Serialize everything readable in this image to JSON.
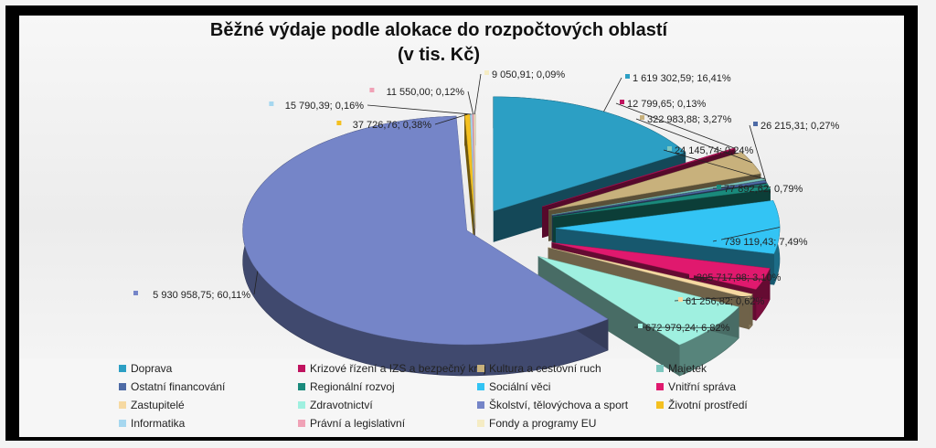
{
  "chart_data": {
    "type": "pie",
    "title_line1": "Běžné výdaje podle alokace do rozpočtových oblastí",
    "title_line2": "(v tis. Kč)",
    "legend_placement": "bottom",
    "slices": [
      {
        "name": "Doprava",
        "value": 1619302.59,
        "percent": 16.41,
        "label": "1 619 302,59; 16,41%",
        "color": "#2c9fc4",
        "exploded": true
      },
      {
        "name": "Krizové řízení a IZS a bezpečný kraj",
        "value": 12799.65,
        "percent": 0.13,
        "label": "12 799,65; 0,13%",
        "color": "#c0135f",
        "exploded": true
      },
      {
        "name": "Kultura a cestovní ruch",
        "value": 322983.88,
        "percent": 3.27,
        "label": "322 983,88; 3,27%",
        "color": "#c8b17c",
        "exploded": true
      },
      {
        "name": "Majetek",
        "value": 24145.74,
        "percent": 0.24,
        "label": "24 145,74; 0,24%",
        "color": "#7dc7bf",
        "exploded": true
      },
      {
        "name": "Ostatní financování",
        "value": 26215.31,
        "percent": 0.27,
        "label": "26 215,31; 0,27%",
        "color": "#4d6aa5",
        "exploded": true
      },
      {
        "name": "Regionální rozvoj",
        "value": 77892.62,
        "percent": 0.79,
        "label": "77 892,62; 0,79%",
        "color": "#1a8a7c",
        "exploded": true
      },
      {
        "name": "Sociální věci",
        "value": 739119.43,
        "percent": 7.49,
        "label": "739 119,43; 7,49%",
        "color": "#33c4f4",
        "exploded": true
      },
      {
        "name": "Vnitřní správa",
        "value": 305717.98,
        "percent": 3.1,
        "label": "305 717,98; 3,10%",
        "color": "#e0196e",
        "exploded": true
      },
      {
        "name": "Zastupitelé",
        "value": 61256.82,
        "percent": 0.62,
        "label": "61 256,82; 0,62%",
        "color": "#f6d9a2",
        "exploded": true
      },
      {
        "name": "Zdravotnictví",
        "value": 672979.24,
        "percent": 6.82,
        "label": "672 979,24; 6,82%",
        "color": "#9ff0e0",
        "exploded": true
      },
      {
        "name": "Školství, tělovýchova a sport",
        "value": 5930958.75,
        "percent": 60.11,
        "label": "5 930 958,75; 60,11%",
        "color": "#7585c8",
        "exploded": true
      },
      {
        "name": "Životní prostředí",
        "value": 37726.76,
        "percent": 0.38,
        "label": "37 726,76; 0,38%",
        "color": "#f4c020",
        "exploded": false
      },
      {
        "name": "Informatika",
        "value": 15790.39,
        "percent": 0.16,
        "label": "15 790,39; 0,16%",
        "color": "#a6d7ef",
        "exploded": false
      },
      {
        "name": "Právní a legislativní",
        "value": 11550.0,
        "percent": 0.12,
        "label": "11 550,00; 0,12%",
        "color": "#f0a2b6",
        "exploded": false
      },
      {
        "name": "Fondy a programy EU",
        "value": 9050.91,
        "percent": 0.09,
        "label": "9 050,91; 0,09%",
        "color": "#f5ecc4",
        "exploded": false
      }
    ]
  }
}
